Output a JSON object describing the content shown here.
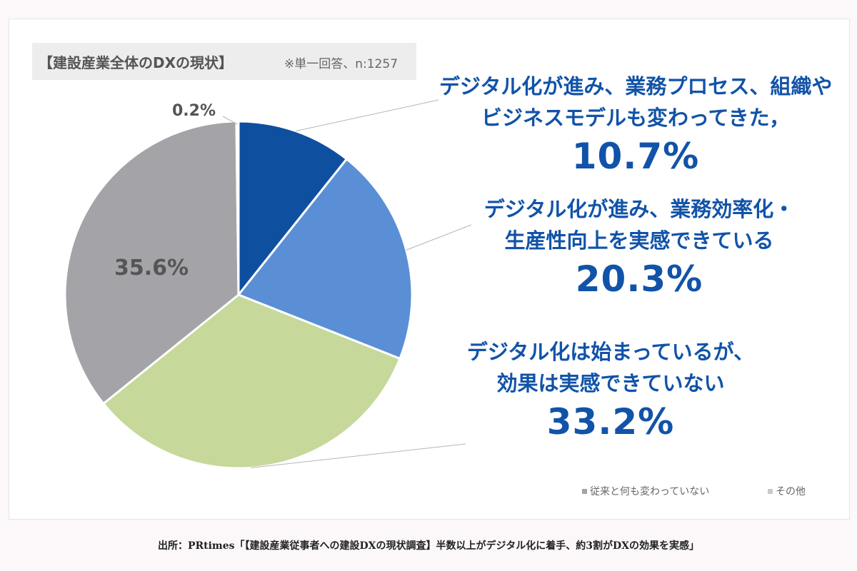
{
  "chart_data": {
    "type": "pie",
    "title": "【建設産業全体のDXの現状】",
    "subtitle": "※単一回答、n:1257",
    "slices": [
      {
        "label": "デジタル化が進み、業務プロセス、組織やビジネスモデルも変わってきた，",
        "value": 10.7,
        "display": "10.7%",
        "color": "#0f4fa0"
      },
      {
        "label": "デジタル化が進み、業務効率化・生産性向上を実感できている",
        "value": 20.3,
        "display": "20.3%",
        "color": "#5a8fd6"
      },
      {
        "label": "デジタル化は始まっているが、効果は実感できていない",
        "value": 33.2,
        "display": "33.2%",
        "color": "#c6d89a"
      },
      {
        "label": "従来と何も変わっていない",
        "value": 35.6,
        "display": "35.6%",
        "color": "#a4a3a8"
      },
      {
        "label": "その他",
        "value": 0.2,
        "display": "0.2%",
        "color": "#c8c8d4"
      }
    ]
  },
  "annotations": [
    {
      "line1": "デジタル化が進み、業務プロセス、組織や",
      "line2": "ビジネスモデルも変わってきた，",
      "pct": "10.7%"
    },
    {
      "line1": "デジタル化が進み、業務効率化・",
      "line2": "生産性向上を実感できている",
      "pct": "20.3%"
    },
    {
      "line1": "デジタル化は始まっているが、",
      "line2": "効果は実感できていない",
      "pct": "33.2%"
    }
  ],
  "slice_labels": {
    "gray": "35.6%",
    "other": "0.2%"
  },
  "legend": [
    {
      "label": "従来と何も変わっていない",
      "color": "#a4a3a8"
    },
    {
      "label": "その他",
      "color": "#c8c8d4"
    }
  ],
  "source": "出所：PRtimes「【建設産業従事者への建設DXの現状調査】半数以上がデジタル化に着手、約3割がDXの効果を実感」"
}
